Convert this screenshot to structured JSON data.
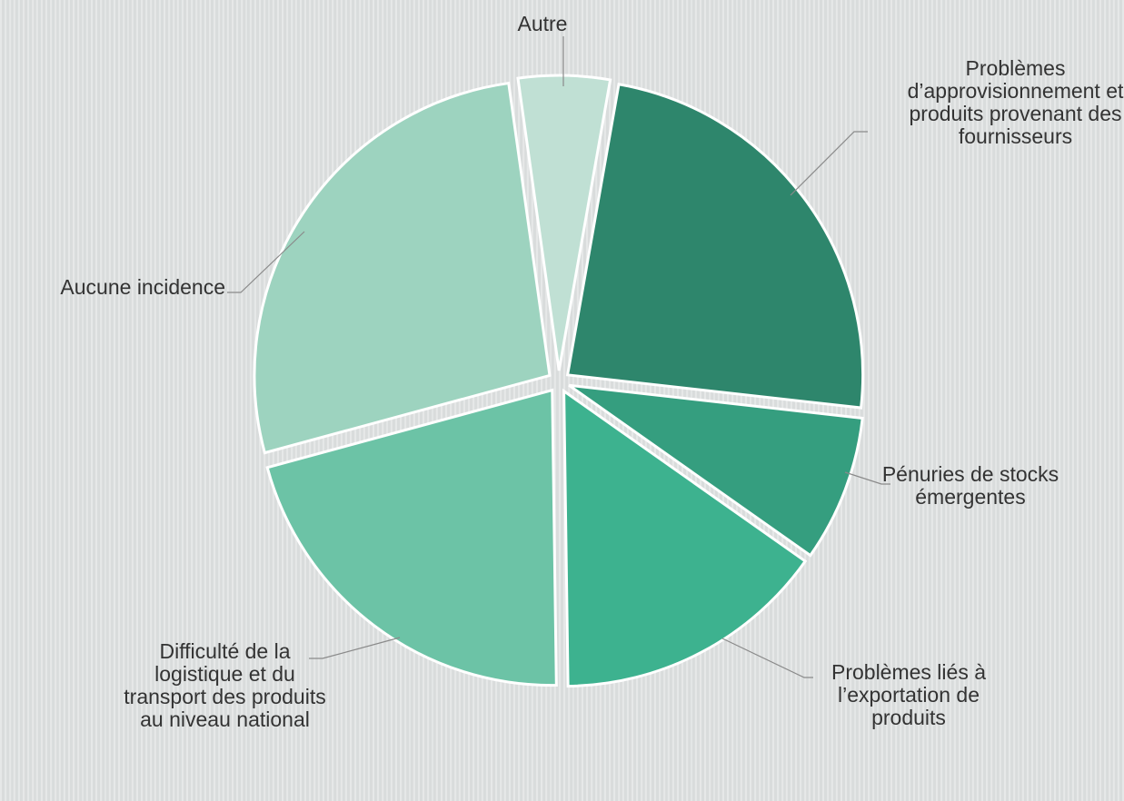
{
  "chart_data": {
    "type": "pie",
    "categories": [
      "Autre",
      "Problèmes d’approvisionnement et produits provenant des fournisseurs",
      "Pénuries de stocks émergentes",
      "Problèmes liés à l’exportation de produits",
      "Difficulté de la logistique et du transport des produits au niveau national",
      "Aucune incidence"
    ],
    "values": [
      5,
      24,
      8,
      15,
      21,
      27
    ],
    "colors": [
      "#c0e0d4",
      "#2e866c",
      "#359e7f",
      "#3db28f",
      "#6cc3a6",
      "#9dd3bf"
    ]
  }
}
